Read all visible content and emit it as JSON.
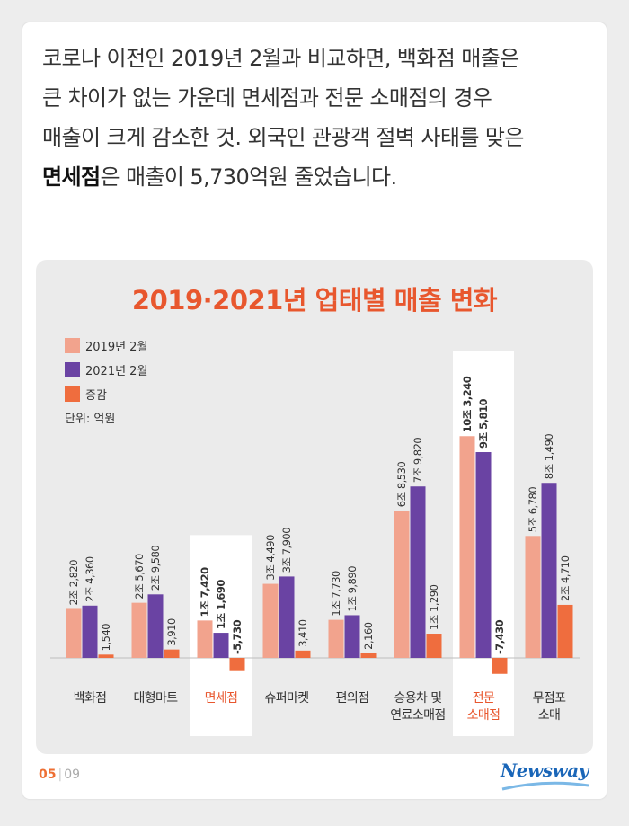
{
  "intro": {
    "line1": "코로나 이전인 2019년 2월과 비교하면, 백화점 매출은",
    "line2": "큰 차이가 없는 가운데 면세점과 전문 소매점의 경우",
    "line3": "매출이 크게 감소한 것. 외국인 관광객 절벽 사태를 맞은",
    "line4_bold": "면세점",
    "line4_rest": "은 매출이 5,730억원 줄었습니다."
  },
  "chart_data": {
    "type": "bar",
    "title": "2019·2021년 업태별 매출 변화",
    "unit_label": "단위: 억원",
    "categories": [
      "백화점",
      "대형마트",
      "면세점",
      "슈퍼마켓",
      "편의점",
      "승용차 및 연료소매점",
      "전문 소매점",
      "무점포 소매"
    ],
    "category_lines": [
      [
        "백화점"
      ],
      [
        "대형마트"
      ],
      [
        "면세점"
      ],
      [
        "슈퍼마켓"
      ],
      [
        "편의점"
      ],
      [
        "승용차 및",
        "연료소매점"
      ],
      [
        "전문",
        "소매점"
      ],
      [
        "무점포",
        "소매"
      ]
    ],
    "highlighted": [
      "면세점",
      "전문 소매점"
    ],
    "series": [
      {
        "name": "2019년 2월",
        "color": "#f2a38d",
        "values": [
          22820,
          25670,
          17420,
          34490,
          17730,
          68530,
          103240,
          56780
        ],
        "labels": [
          "2조 2,820",
          "2조 5,670",
          "1조 7,420",
          "3조 4,490",
          "1조 7,730",
          "6조 8,530",
          "10조 3,240",
          "5조 6,780"
        ]
      },
      {
        "name": "2021년 2월",
        "color": "#6a43a3",
        "values": [
          24360,
          29580,
          11690,
          37900,
          19890,
          79820,
          95810,
          81490
        ],
        "labels": [
          "2조 4,360",
          "2조 9,580",
          "1조 1,690",
          "3조 7,900",
          "1조 9,890",
          "7조 9,820",
          "9조 5,810",
          "8조 1,490"
        ]
      },
      {
        "name": "증감",
        "color": "#ef6d3e",
        "values": [
          1540,
          3910,
          -5730,
          3410,
          2160,
          11290,
          -7430,
          24710
        ],
        "labels": [
          "1,540",
          "3,910",
          "-5,730",
          "3,410",
          "2,160",
          "1조 1,290",
          "-7,430",
          "2조 4,710"
        ]
      }
    ],
    "ylim": [
      -8000,
      108000
    ]
  },
  "colors": {
    "title": "#e8572e",
    "highlight_label": "#e8572e",
    "brand": "#1a66b8"
  },
  "footer": {
    "page": "05",
    "total": "09",
    "logo": "Newsway"
  }
}
